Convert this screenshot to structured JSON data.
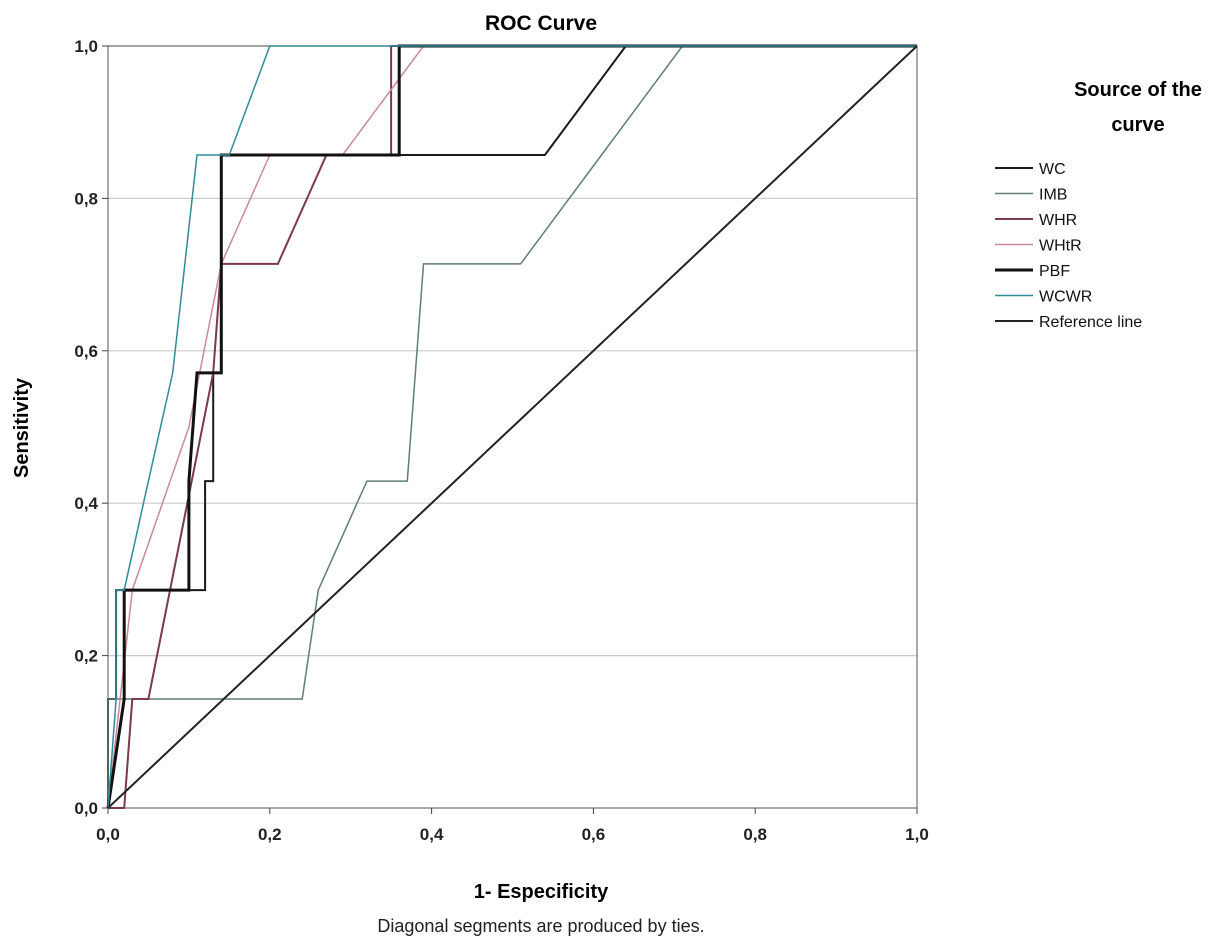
{
  "chart_data": {
    "type": "line",
    "title": "ROC Curve",
    "xlabel": "1- Especificity",
    "ylabel": "Sensitivity",
    "footnote": "Diagonal segments are produced by ties.",
    "xlim": [
      0,
      1
    ],
    "ylim": [
      0,
      1
    ],
    "x_ticks": [
      "0,0",
      "0,2",
      "0,4",
      "0,6",
      "0,8",
      "1,0"
    ],
    "y_ticks": [
      "0,0",
      "0,2",
      "0,4",
      "0,6",
      "0,8",
      "1,0"
    ],
    "grid": "horizontal",
    "legend": {
      "title_line1": "Source of the",
      "title_line2": "curve",
      "placement": "right"
    },
    "series": [
      {
        "name": "WC",
        "color": "#1a1a1a",
        "width": 2,
        "points": [
          [
            0,
            0
          ],
          [
            0,
            0.143
          ],
          [
            0.01,
            0.143
          ],
          [
            0.01,
            0.286
          ],
          [
            0.12,
            0.286
          ],
          [
            0.12,
            0.429
          ],
          [
            0.13,
            0.429
          ],
          [
            0.13,
            0.571
          ],
          [
            0.14,
            0.571
          ],
          [
            0.14,
            0.857
          ],
          [
            0.54,
            0.857
          ],
          [
            0.64,
            1
          ],
          [
            1,
            1
          ]
        ]
      },
      {
        "name": "IMB",
        "color": "#5f7f74",
        "width": 1.5,
        "points": [
          [
            0,
            0
          ],
          [
            0,
            0.143
          ],
          [
            0.24,
            0.143
          ],
          [
            0.26,
            0.286
          ],
          [
            0.32,
            0.429
          ],
          [
            0.37,
            0.429
          ],
          [
            0.39,
            0.714
          ],
          [
            0.51,
            0.714
          ],
          [
            0.61,
            0.857
          ],
          [
            0.71,
            1
          ],
          [
            1,
            1
          ]
        ]
      },
      {
        "name": "WHR",
        "color": "#7a3a4a",
        "width": 2,
        "points": [
          [
            0,
            0
          ],
          [
            0.02,
            0
          ],
          [
            0.03,
            0.143
          ],
          [
            0.05,
            0.143
          ],
          [
            0.13,
            0.571
          ],
          [
            0.14,
            0.714
          ],
          [
            0.21,
            0.714
          ],
          [
            0.27,
            0.857
          ],
          [
            0.35,
            0.857
          ],
          [
            0.35,
            1
          ],
          [
            1,
            1
          ]
        ]
      },
      {
        "name": "WHtR",
        "color": "#c98a99",
        "width": 1.5,
        "points": [
          [
            0,
            0
          ],
          [
            0.03,
            0.286
          ],
          [
            0.1,
            0.5
          ],
          [
            0.14,
            0.714
          ],
          [
            0.2,
            0.857
          ],
          [
            0.29,
            0.857
          ],
          [
            0.39,
            1
          ],
          [
            1,
            1
          ]
        ]
      },
      {
        "name": "PBF",
        "color": "#111111",
        "width": 3,
        "points": [
          [
            0,
            0
          ],
          [
            0.02,
            0.143
          ],
          [
            0.02,
            0.286
          ],
          [
            0.1,
            0.286
          ],
          [
            0.1,
            0.429
          ],
          [
            0.11,
            0.571
          ],
          [
            0.14,
            0.571
          ],
          [
            0.14,
            0.857
          ],
          [
            0.36,
            0.857
          ],
          [
            0.36,
            1
          ],
          [
            1,
            1
          ]
        ]
      },
      {
        "name": "WCWR",
        "color": "#2f8c98",
        "width": 1.5,
        "points": [
          [
            0,
            0
          ],
          [
            0.01,
            0.143
          ],
          [
            0.01,
            0.286
          ],
          [
            0.02,
            0.286
          ],
          [
            0.05,
            0.429
          ],
          [
            0.08,
            0.571
          ],
          [
            0.11,
            0.857
          ],
          [
            0.12,
            0.857
          ],
          [
            0.15,
            0.857
          ],
          [
            0.2,
            1
          ],
          [
            1,
            1
          ]
        ]
      },
      {
        "name": "Reference line",
        "color": "#222222",
        "width": 2,
        "points": [
          [
            0,
            0
          ],
          [
            1,
            1
          ]
        ]
      }
    ]
  }
}
